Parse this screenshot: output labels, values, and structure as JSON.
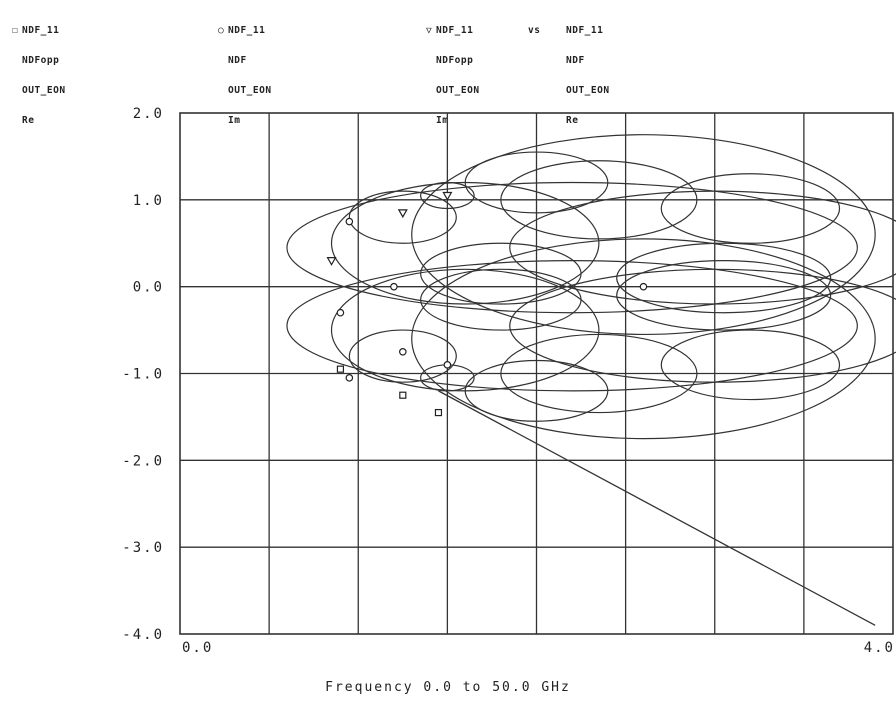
{
  "legend": [
    {
      "marker": "square-icon",
      "lines": [
        "NDF_11",
        "NDFopp",
        "OUT_EON",
        "Re"
      ]
    },
    {
      "marker": "circle-icon",
      "lines": [
        "NDF_11",
        "NDF",
        "OUT_EON",
        "Im"
      ]
    },
    {
      "marker": "triangle-icon",
      "lines": [
        "NDF_11",
        "NDFopp",
        "OUT_EON",
        "Im"
      ],
      "vs": "vs",
      "vs_lines": [
        "NDF_11",
        "NDF",
        "OUT_EON",
        "Re"
      ]
    }
  ],
  "chart_data": {
    "type": "line",
    "xlim": [
      0.0,
      4.0
    ],
    "ylim": [
      -4.0,
      2.0
    ],
    "x_tick_labels": [
      "0.0",
      "4.0"
    ],
    "y_ticks": [
      {
        "value": 2.0,
        "label": "2.0"
      },
      {
        "value": 1.0,
        "label": "1.0"
      },
      {
        "value": 0.0,
        "label": "0.0"
      },
      {
        "value": -1.0,
        "label": "-1.0"
      },
      {
        "value": -2.0,
        "label": "-2.0"
      },
      {
        "value": -3.0,
        "label": "-3.0"
      },
      {
        "value": -4.0,
        "label": "-4.0"
      }
    ],
    "grid": true,
    "x_gridlines": 8,
    "xlabel": "Frequency 0.0 to 50.0 GHz",
    "diagonal": [
      [
        1.45,
        -1.2
      ],
      [
        3.9,
        -3.9
      ]
    ],
    "loops": [
      {
        "cx": 2.6,
        "cy": 0.6,
        "rx": 1.3,
        "ry": 1.15
      },
      {
        "cx": 2.6,
        "cy": -0.6,
        "rx": 1.3,
        "ry": 1.15
      },
      {
        "cx": 2.2,
        "cy": 0.45,
        "rx": 1.6,
        "ry": 0.75
      },
      {
        "cx": 2.2,
        "cy": -0.45,
        "rx": 1.6,
        "ry": 0.75
      },
      {
        "cx": 3.0,
        "cy": 0.45,
        "rx": 1.15,
        "ry": 0.65
      },
      {
        "cx": 3.0,
        "cy": -0.45,
        "rx": 1.15,
        "ry": 0.65
      },
      {
        "cx": 3.2,
        "cy": 0.9,
        "rx": 0.5,
        "ry": 0.4
      },
      {
        "cx": 3.2,
        "cy": -0.9,
        "rx": 0.5,
        "ry": 0.4
      },
      {
        "cx": 3.05,
        "cy": 0.1,
        "rx": 0.6,
        "ry": 0.4
      },
      {
        "cx": 3.05,
        "cy": -0.1,
        "rx": 0.6,
        "ry": 0.4
      },
      {
        "cx": 2.0,
        "cy": 1.2,
        "rx": 0.4,
        "ry": 0.35
      },
      {
        "cx": 2.0,
        "cy": -1.2,
        "rx": 0.4,
        "ry": 0.35
      },
      {
        "cx": 2.35,
        "cy": 1.0,
        "rx": 0.55,
        "ry": 0.45
      },
      {
        "cx": 2.35,
        "cy": -1.0,
        "rx": 0.55,
        "ry": 0.45
      },
      {
        "cx": 1.6,
        "cy": 0.5,
        "rx": 0.75,
        "ry": 0.7
      },
      {
        "cx": 1.6,
        "cy": -0.5,
        "rx": 0.75,
        "ry": 0.7
      },
      {
        "cx": 1.25,
        "cy": 0.8,
        "rx": 0.3,
        "ry": 0.3
      },
      {
        "cx": 1.25,
        "cy": -0.8,
        "rx": 0.3,
        "ry": 0.3
      },
      {
        "cx": 1.5,
        "cy": 1.05,
        "rx": 0.15,
        "ry": 0.15
      },
      {
        "cx": 1.5,
        "cy": -1.05,
        "rx": 0.15,
        "ry": 0.15
      },
      {
        "cx": 1.8,
        "cy": 0.15,
        "rx": 0.45,
        "ry": 0.35
      },
      {
        "cx": 1.8,
        "cy": -0.15,
        "rx": 0.45,
        "ry": 0.35
      }
    ],
    "markers": [
      {
        "shape": "square",
        "x": 0.9,
        "y": -0.95
      },
      {
        "shape": "square",
        "x": 1.25,
        "y": -1.25
      },
      {
        "shape": "square",
        "x": 1.45,
        "y": -1.45
      },
      {
        "shape": "circle",
        "x": 0.95,
        "y": -1.05
      },
      {
        "shape": "circle",
        "x": 1.25,
        "y": -0.75
      },
      {
        "shape": "circle",
        "x": 1.5,
        "y": -0.9
      },
      {
        "shape": "circle",
        "x": 0.9,
        "y": -0.3
      },
      {
        "shape": "circle",
        "x": 1.2,
        "y": 0.0
      },
      {
        "shape": "circle",
        "x": 0.95,
        "y": 0.75
      },
      {
        "shape": "circle",
        "x": 2.6,
        "y": 0.0
      },
      {
        "shape": "triangle",
        "x": 0.85,
        "y": 0.3
      },
      {
        "shape": "triangle",
        "x": 1.25,
        "y": 0.85
      },
      {
        "shape": "triangle",
        "x": 1.5,
        "y": 1.05
      }
    ]
  }
}
